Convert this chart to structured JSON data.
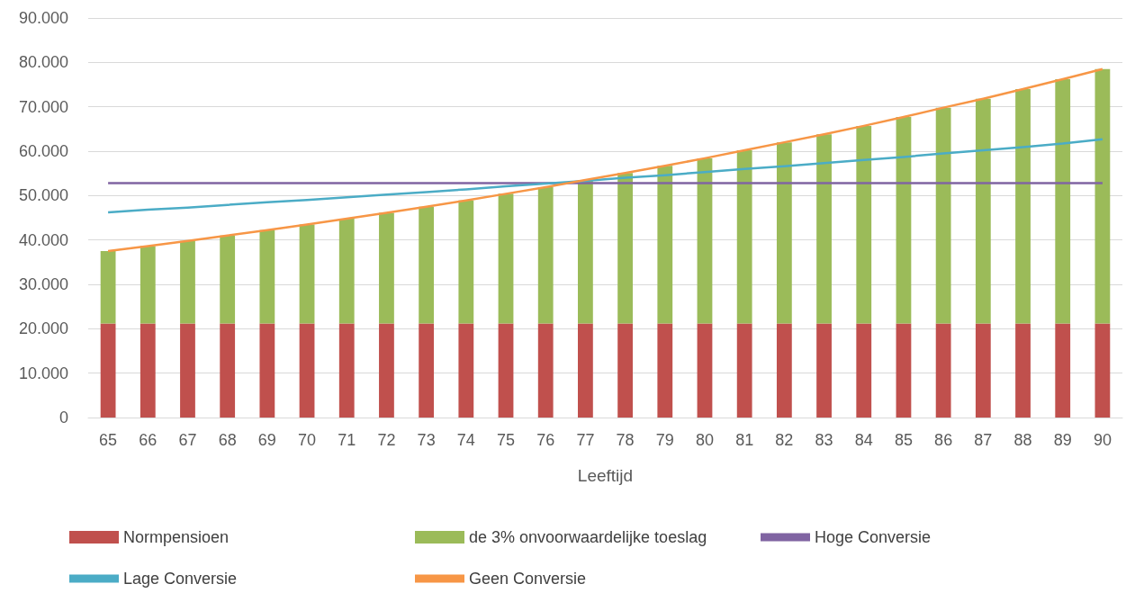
{
  "chart_data": {
    "type": "bar",
    "stacked": true,
    "xlabel": "Leeftijd",
    "categories": [
      "65",
      "66",
      "67",
      "68",
      "69",
      "70",
      "71",
      "72",
      "73",
      "74",
      "75",
      "76",
      "77",
      "78",
      "79",
      "80",
      "81",
      "82",
      "83",
      "84",
      "85",
      "86",
      "87",
      "88",
      "89",
      "90"
    ],
    "series": [
      {
        "name": "Normpensioen",
        "color": "#c0504d",
        "values": [
          21200,
          21200,
          21200,
          21200,
          21200,
          21200,
          21200,
          21200,
          21200,
          21200,
          21200,
          21200,
          21200,
          21200,
          21200,
          21200,
          21200,
          21200,
          21200,
          21200,
          21200,
          21200,
          21200,
          21200,
          21200,
          21200
        ]
      },
      {
        "name": "de 3% onvoorwaardelijke toeslag",
        "color": "#9bbb59",
        "values": [
          16300,
          17400,
          18600,
          19800,
          21000,
          22300,
          23600,
          24900,
          26300,
          27700,
          29200,
          30700,
          32300,
          33900,
          35500,
          37200,
          39000,
          40800,
          42600,
          44500,
          46500,
          48600,
          50600,
          52800,
          55000,
          57300
        ]
      },
      {
        "name": "Hoge Conversie",
        "type": "line",
        "color": "#8064a2",
        "values": [
          52800,
          52800,
          52800,
          52800,
          52800,
          52800,
          52800,
          52800,
          52800,
          52800,
          52800,
          52800,
          52800,
          52800,
          52800,
          52800,
          52800,
          52800,
          52800,
          52800,
          52800,
          52800,
          52800,
          52800,
          52800,
          52800
        ]
      },
      {
        "name": "Lage Conversie",
        "type": "line",
        "color": "#4bacc6",
        "values": [
          46200,
          46800,
          47300,
          47900,
          48500,
          49000,
          49600,
          50200,
          50800,
          51400,
          52100,
          52700,
          53300,
          54000,
          54600,
          55300,
          56000,
          56600,
          57300,
          58000,
          58700,
          59500,
          60200,
          60900,
          61700,
          62700
        ]
      },
      {
        "name": "Geen Conversie",
        "type": "line",
        "color": "#f79646",
        "values": [
          37500,
          38600,
          39800,
          41000,
          42200,
          43500,
          44800,
          46100,
          47500,
          48900,
          50400,
          51900,
          53500,
          55100,
          56700,
          58400,
          60200,
          62000,
          63800,
          65700,
          67700,
          69800,
          71800,
          74000,
          76200,
          78500
        ]
      }
    ],
    "ylim": [
      0,
      90000
    ],
    "yticks": [
      0,
      {
        "value": 10000,
        "label": "10.000"
      },
      {
        "value": 20000,
        "label": "20.000"
      },
      {
        "value": 30000,
        "label": "30.000"
      },
      {
        "value": 40000,
        "label": "40.000"
      },
      {
        "value": 50000,
        "label": "50.000"
      },
      {
        "value": 60000,
        "label": "60.000"
      },
      {
        "value": 70000,
        "label": "70.000"
      },
      {
        "value": 80000,
        "label": "80.000"
      },
      {
        "value": 90000,
        "label": "90.000"
      }
    ],
    "grid": "y",
    "legend": "bottom",
    "marker": "none",
    "line_style": "solid"
  }
}
